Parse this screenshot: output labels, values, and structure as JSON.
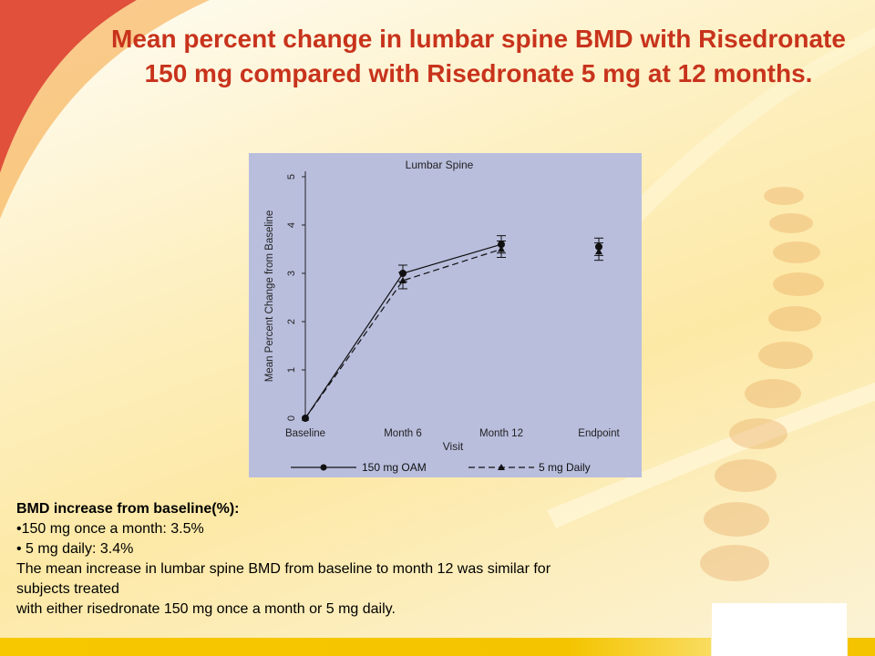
{
  "slide": {
    "title": "Mean percent change in lumbar spine BMD with Risedronate 150 mg compared with Risedronate 5 mg at 12 months.",
    "colors": {
      "title": "#c8331c",
      "plot_bg": "#b9bedd",
      "accent_red": "#e0503a",
      "bar_yellow": "#f4c400"
    },
    "notes": {
      "heading": "BMD increase from baseline(%):",
      "bullet1": "•150 mg once a month: 3.5%",
      "bullet2": "• 5 mg daily: 3.4%",
      "line1": "The mean increase in lumbar spine BMD from baseline to month 12 was similar for",
      "line2": "subjects treated",
      "line3": "with either risedronate 150 mg once a month or 5 mg daily."
    }
  },
  "chart_data": {
    "type": "line",
    "title": "Lumbar Spine",
    "xlabel": "Visit",
    "ylabel": "Mean Percent Change from Baseline",
    "categories": [
      "Baseline",
      "Month 6",
      "Month 12",
      "Endpoint"
    ],
    "ylim": [
      0,
      5
    ],
    "yticks": [
      "0",
      "1",
      "2",
      "3",
      "4",
      "5"
    ],
    "grid": false,
    "legend_position": "bottom",
    "series": [
      {
        "name": "150 mg OAM",
        "style": "solid",
        "marker": "circle",
        "values": [
          0,
          3.0,
          3.6,
          3.55
        ],
        "error": [
          0,
          0.17,
          0.18,
          0.18
        ]
      },
      {
        "name": "5 mg Daily",
        "style": "dashed",
        "marker": "triangle",
        "values": [
          0,
          2.85,
          3.5,
          3.45
        ],
        "error": [
          0,
          0.17,
          0.17,
          0.18
        ]
      }
    ]
  }
}
